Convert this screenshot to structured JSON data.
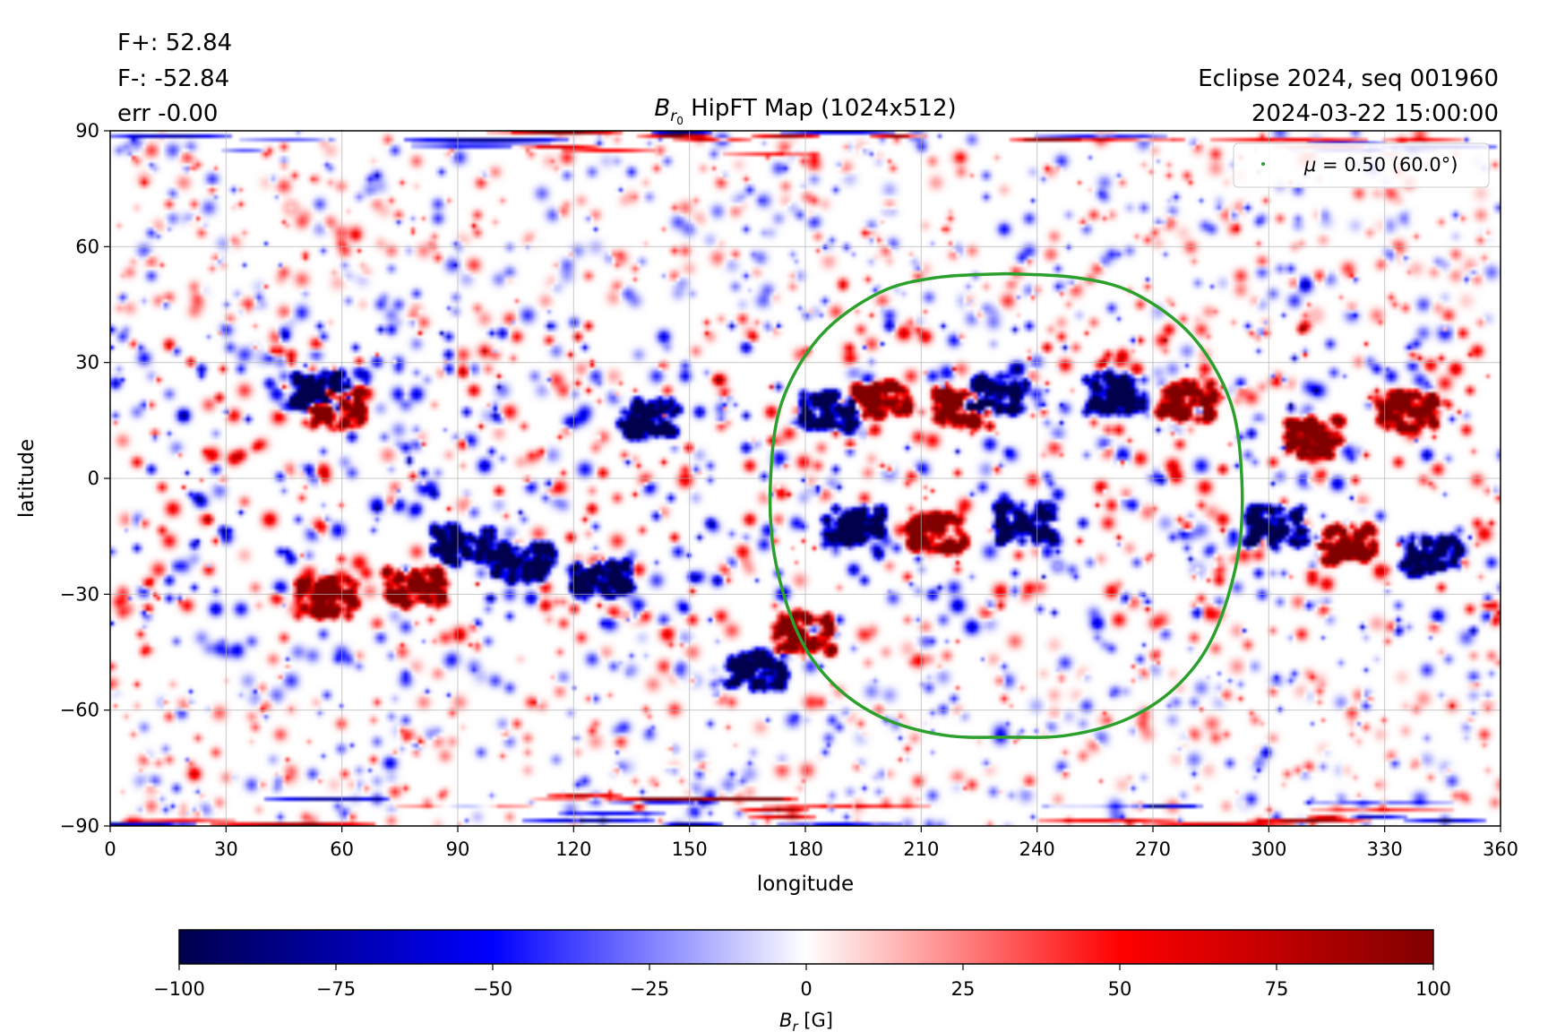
{
  "annotations": {
    "flux_plus": "F+: 52.84",
    "flux_minus": "F-: -52.84",
    "flux_err": "err -0.00",
    "event": "Eclipse 2024, seq 001960",
    "datetime": "2024-03-22 15:00:00"
  },
  "chart_data": {
    "type": "heatmap",
    "title_main": "B",
    "title_sub": "r",
    "title_subsub": "0",
    "title_rest": " HipFT Map (1024x512)",
    "xlabel": "longitude",
    "ylabel": "latitude",
    "xlim": [
      0,
      360
    ],
    "ylim": [
      -90,
      90
    ],
    "xticks": [
      0,
      30,
      60,
      90,
      120,
      150,
      180,
      210,
      240,
      270,
      300,
      330,
      360
    ],
    "yticks": [
      90,
      60,
      30,
      0,
      -30,
      -60,
      -90
    ],
    "ytick_labels": [
      "90",
      "60",
      "30",
      "0",
      "−30",
      "−60",
      "−90"
    ],
    "grid": true,
    "colormap": "seismic",
    "colors": {
      "negative_max": "#00004d",
      "negative_mid": "#0000ff",
      "zero": "#ffffff",
      "positive_mid": "#ff0000",
      "positive_max": "#800000",
      "contour": "#2ca02c"
    },
    "legend": {
      "label_sym": "μ",
      "label_rest": " = 0.50 (60.0°)",
      "position": "top-right"
    },
    "contour_mu": {
      "mu": 0.5,
      "center_lon": 232,
      "points": [
        [
          232,
          53
        ],
        [
          250,
          52
        ],
        [
          265,
          48
        ],
        [
          280,
          37
        ],
        [
          290,
          20
        ],
        [
          293,
          0
        ],
        [
          292,
          -20
        ],
        [
          286,
          -40
        ],
        [
          277,
          -53
        ],
        [
          264,
          -62
        ],
        [
          248,
          -66.5
        ],
        [
          232,
          -67
        ],
        [
          216,
          -66.5
        ],
        [
          200,
          -62
        ],
        [
          187,
          -53
        ],
        [
          178,
          -40
        ],
        [
          172,
          -20
        ],
        [
          171,
          0
        ],
        [
          174,
          20
        ],
        [
          184,
          37
        ],
        [
          199,
          48
        ],
        [
          214,
          52
        ],
        [
          232,
          53
        ]
      ]
    },
    "colorbar": {
      "min": -100,
      "max": 100,
      "ticks": [
        -100,
        -75,
        -50,
        -25,
        0,
        25,
        50,
        75,
        100
      ],
      "tick_labels": [
        "−100",
        "−75",
        "−50",
        "−25",
        "0",
        "25",
        "50",
        "75",
        "100"
      ],
      "label_main": "B",
      "label_sub": "r",
      "label_unit": " [G]"
    }
  }
}
